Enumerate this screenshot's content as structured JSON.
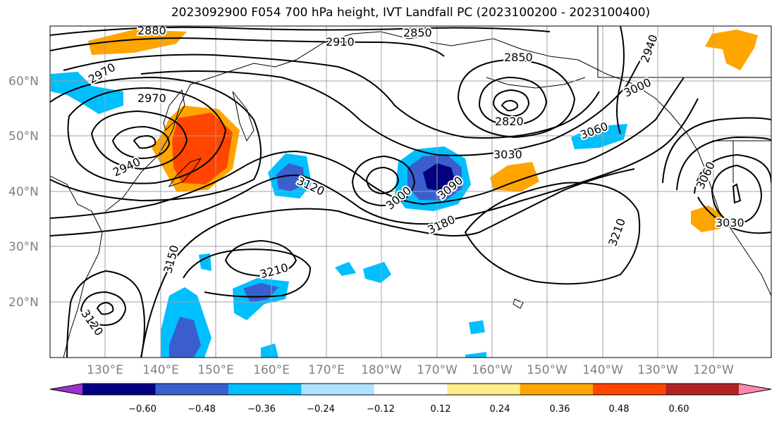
{
  "title": "2023092900 F054 700 hPa height, IVT Landfall PC (2023100200 - 2023100400)",
  "latitude_labels": [
    "60°N",
    "50°N",
    "40°N",
    "30°N",
    "20°N"
  ],
  "longitude_labels": [
    "130°E",
    "140°E",
    "150°E",
    "160°E",
    "170°E",
    "180°W",
    "170°W",
    "160°W",
    "150°W",
    "140°W",
    "130°W",
    "120°W"
  ],
  "contour_labels": [
    "2880",
    "2850",
    "2910",
    "2850",
    "2940",
    "2970",
    "2970",
    "3000",
    "2820",
    "3060",
    "2940",
    "3030",
    "3120",
    "3000",
    "3090",
    "3060",
    "3180",
    "3030",
    "3210",
    "3150",
    "3210",
    "3120"
  ],
  "colorbar": {
    "tick_labels": [
      "−0.60",
      "−0.48",
      "−0.36",
      "−0.24",
      "−0.12",
      "0.12",
      "0.24",
      "0.36",
      "0.48",
      "0.60"
    ],
    "colors": [
      "#9932cc",
      "#000080",
      "#3a5fcd",
      "#00bfff",
      "#b0e2ff",
      "#ffffff",
      "#ffec8b",
      "#ffa500",
      "#ff4500",
      "#b22222",
      "#ff88b0"
    ]
  },
  "colors": {
    "contour": "#000000",
    "gridline": "#a0a0a0",
    "axis_label": "#808080"
  }
}
